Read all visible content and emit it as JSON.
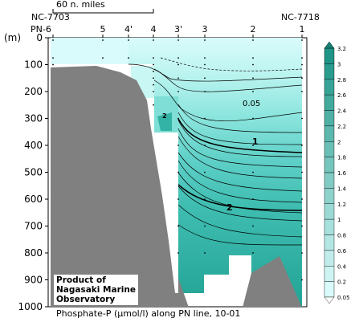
{
  "chart_data": {
    "type": "contour",
    "title": "Phosphate-P (μmol/l) along PN line, 10-01",
    "ylabel": "(m)",
    "ylim": [
      0,
      1000
    ],
    "y_ticks": [
      0,
      100,
      200,
      300,
      400,
      500,
      600,
      700,
      800,
      900,
      1000
    ],
    "stations": [
      "PN-6",
      "5",
      "4'",
      "4",
      "3'",
      "3",
      "2",
      "1"
    ],
    "end_labels": [
      "NC-7703",
      "NC-7718"
    ],
    "scale_bar": "60 n. miles",
    "colorbar": {
      "levels": [
        3.2,
        3,
        2.8,
        2.6,
        2.4,
        2.2,
        2,
        1.8,
        1.6,
        1.4,
        1.2,
        1,
        0.8,
        0.6,
        0.4,
        0.2,
        0.05
      ]
    },
    "contour_labels": [
      "0.05",
      "1",
      "2",
      "2"
    ],
    "credit": [
      "Product of",
      "Nagasaki Marine",
      "Observatory"
    ],
    "colors": {
      "seafloor": "#808080",
      "low": "#d9fbfb",
      "high": "#26a595"
    }
  }
}
